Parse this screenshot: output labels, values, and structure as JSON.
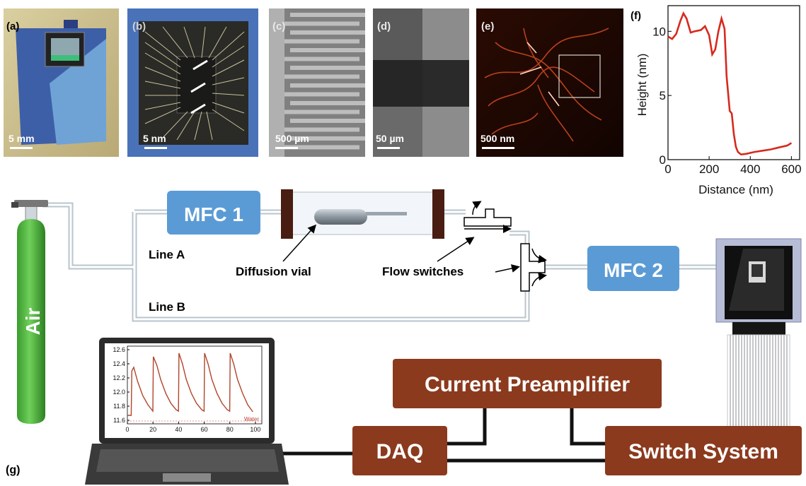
{
  "panels": {
    "a": {
      "tag": "(a)",
      "scale": "5 mm"
    },
    "b": {
      "tag": "(b)",
      "scale": "5 nm"
    },
    "c": {
      "tag": "(c)",
      "scale": "500 µm"
    },
    "d": {
      "tag": "(d)",
      "scale": "50 µm"
    },
    "e": {
      "tag": "(e)",
      "scale": "500 nm"
    },
    "f": {
      "tag": "(f)"
    },
    "g": {
      "tag": "(g)"
    }
  },
  "setup": {
    "air_label": "Air",
    "mfc1_label": "MFC 1",
    "mfc2_label": "MFC 2",
    "line_a_label": "Line A",
    "line_b_label": "Line B",
    "diffusion_vial_label": "Diffusion vial",
    "flow_switches_label": "Flow switches",
    "preamp_label": "Current Preamplifier",
    "daq_label": "DAQ",
    "switch_system_label": "Switch System",
    "laptop_legend": "Water"
  },
  "colors": {
    "mfc_blue": "#5b9bd5",
    "brown_box": "#8b3a1e",
    "air_green": "#4caf3a",
    "profile_red": "#d62a1e"
  },
  "chart_data": [
    {
      "type": "line",
      "panel": "f",
      "title": "",
      "xlabel": "Distance (nm)",
      "ylabel": "Height (nm)",
      "xlim": [
        0,
        640
      ],
      "ylim": [
        0,
        12
      ],
      "xticks": [
        0,
        200,
        400,
        600
      ],
      "yticks": [
        0,
        5,
        10
      ],
      "grid": false,
      "series": [
        {
          "x": [
            0,
            20,
            40,
            60,
            75,
            90,
            110,
            130,
            160,
            180,
            200,
            215,
            230,
            245,
            260,
            275,
            285,
            300,
            310,
            320,
            330,
            340,
            355,
            380,
            420,
            460,
            500,
            540,
            580,
            600
          ],
          "y": [
            9.6,
            9.4,
            9.8,
            10.8,
            11.4,
            11.0,
            9.9,
            10.0,
            10.1,
            10.4,
            9.7,
            8.2,
            8.6,
            10.0,
            11.0,
            10.2,
            6.5,
            3.8,
            3.6,
            2.0,
            1.0,
            0.6,
            0.4,
            0.45,
            0.6,
            0.7,
            0.8,
            0.95,
            1.1,
            1.3
          ]
        }
      ]
    },
    {
      "type": "line",
      "panel": "g-laptop",
      "title": "",
      "xlabel": "",
      "ylabel": "",
      "xlim": [
        0,
        105
      ],
      "ylim": [
        11.55,
        12.65
      ],
      "xticks": [
        0,
        20,
        40,
        60,
        80,
        100
      ],
      "yticks": [
        11.6,
        11.8,
        12.0,
        12.2,
        12.4,
        12.6
      ],
      "legend": "Water",
      "grid": false,
      "series": [
        {
          "x": [
            0,
            3,
            3.5,
            5,
            8,
            12,
            16,
            19.9,
            20.3,
            23,
            26,
            30,
            34,
            38,
            39.9,
            40.3,
            43,
            46,
            50,
            54,
            58,
            59.9,
            60.3,
            63,
            66,
            70,
            74,
            78,
            79.9,
            80.3,
            83,
            86,
            90,
            94,
            98
          ],
          "y": [
            11.67,
            11.67,
            12.3,
            12.35,
            12.15,
            11.95,
            11.82,
            11.73,
            12.5,
            12.38,
            12.18,
            11.98,
            11.84,
            11.75,
            11.73,
            12.55,
            12.4,
            12.18,
            11.98,
            11.84,
            11.75,
            11.73,
            12.55,
            12.4,
            12.18,
            11.98,
            11.84,
            11.75,
            11.73,
            12.55,
            12.4,
            12.18,
            11.98,
            11.82,
            11.72
          ]
        }
      ]
    }
  ]
}
